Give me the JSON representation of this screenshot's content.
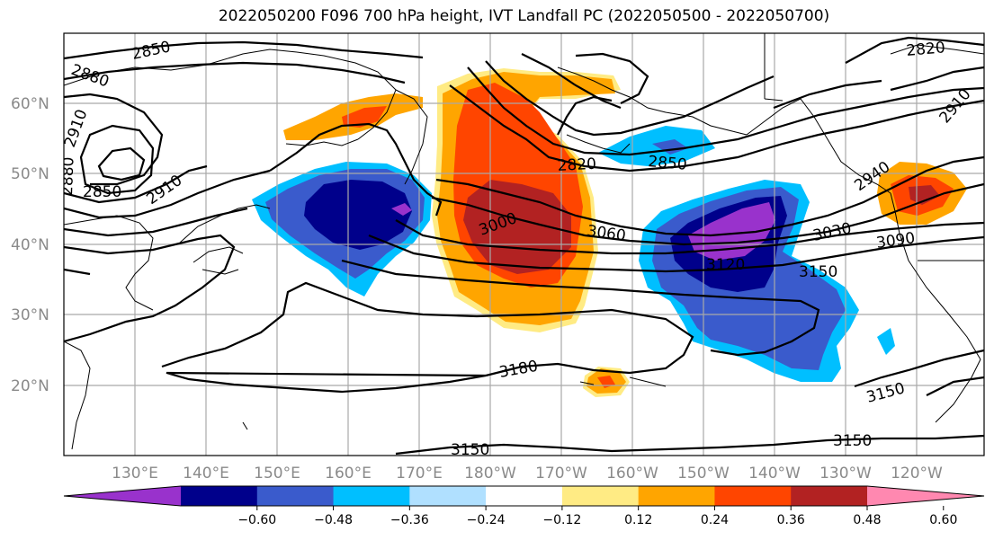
{
  "title": "2022050200 F096 700 hPa height, IVT Landfall PC (2022050500 - 2022050700)",
  "lat_labels": [
    "60°N",
    "50°N",
    "40°N",
    "30°N",
    "20°N"
  ],
  "lon_labels": [
    "130°E",
    "140°E",
    "150°E",
    "160°E",
    "170°E",
    "180°W",
    "170°W",
    "160°W",
    "150°W",
    "140°W",
    "130°W",
    "120°W"
  ],
  "colorbar": {
    "ticks": [
      "−0.60",
      "−0.48",
      "−0.36",
      "−0.24",
      "−0.12",
      "0.12",
      "0.24",
      "0.36",
      "0.48",
      "0.60"
    ],
    "colors": [
      "#9932cc",
      "#00008b",
      "#3a5bcc",
      "#00bfff",
      "#b0e0ff",
      "#ffffff",
      "#ffeb84",
      "#ffa500",
      "#ff4500",
      "#b22222",
      "#ff88b0"
    ]
  },
  "contour_labels": [
    "2850",
    "2880",
    "2910",
    "2880",
    "2850",
    "2910",
    "2820",
    "2850",
    "3000",
    "3060",
    "3120",
    "3150",
    "3030",
    "3090",
    "2910",
    "2940",
    "3180",
    "3150",
    "3150",
    "3150",
    "2820"
  ]
}
